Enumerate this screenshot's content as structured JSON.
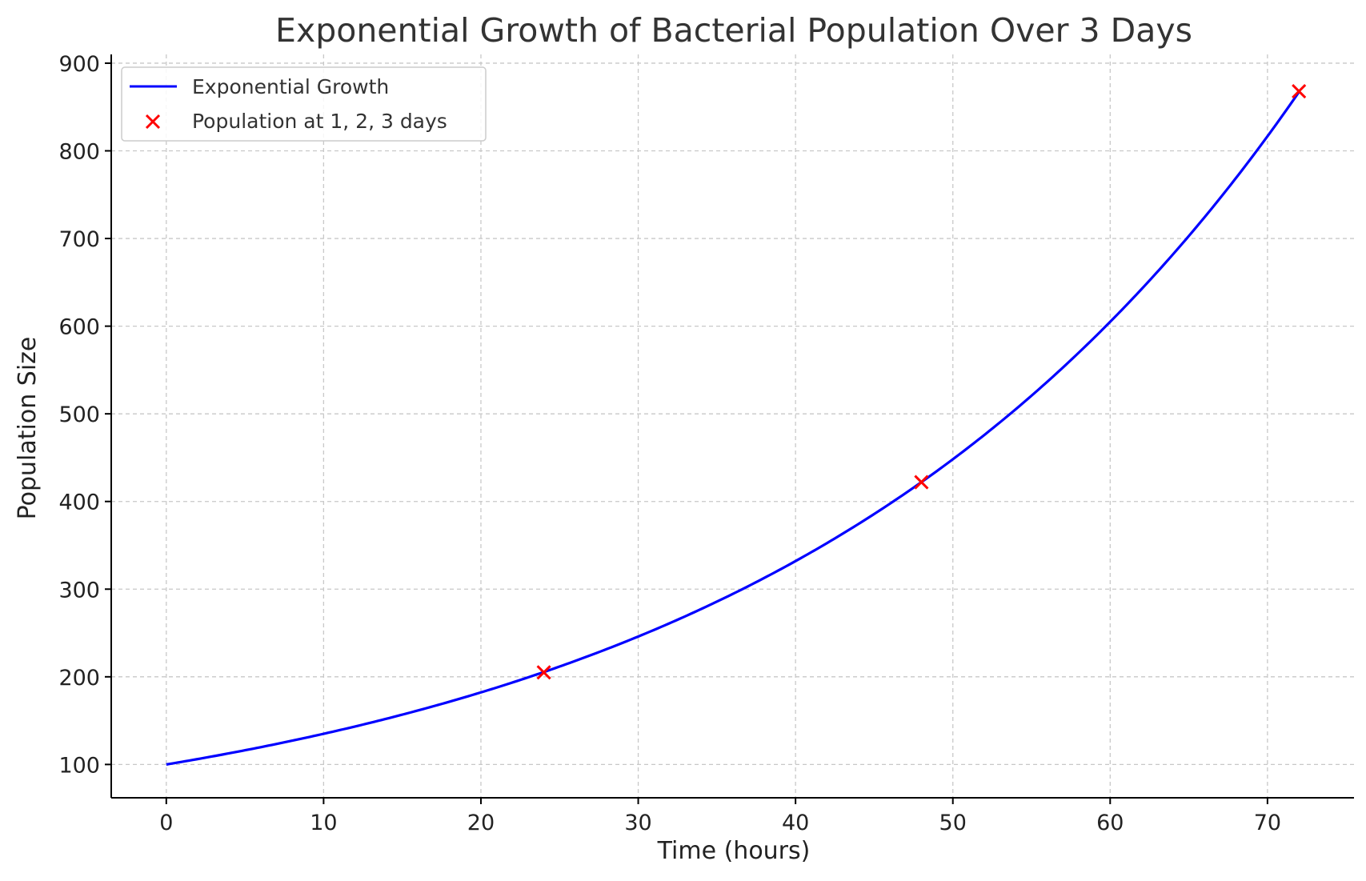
{
  "chart_data": {
    "type": "line",
    "title": "Exponential Growth of Bacterial Population Over 3 Days",
    "xlabel": "Time (hours)",
    "ylabel": "Population Size",
    "xlim": [
      -3.5,
      75.5
    ],
    "ylim": [
      62,
      910
    ],
    "xticks": [
      0,
      10,
      20,
      30,
      40,
      50,
      60,
      70
    ],
    "yticks": [
      100,
      200,
      300,
      400,
      500,
      600,
      700,
      800,
      900
    ],
    "grid": true,
    "legend_position": "top-left",
    "series": [
      {
        "name": "Exponential Growth",
        "kind": "line",
        "color": "#0000ff",
        "function": "100 * exp(0.03 * t)",
        "x_range": [
          0,
          72
        ],
        "initial": 100,
        "rate": 0.03
      },
      {
        "name": "Population at 1, 2, 3 days",
        "kind": "scatter",
        "marker": "x",
        "color": "#ff0000",
        "x": [
          24,
          48,
          72
        ],
        "y": [
          205,
          422,
          868
        ]
      }
    ]
  }
}
